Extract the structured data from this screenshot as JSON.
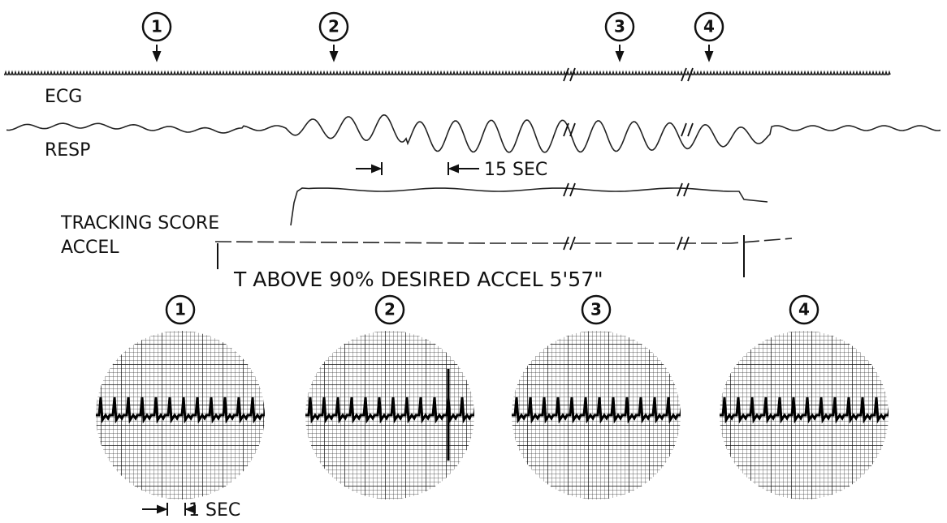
{
  "top_markers": [
    "1",
    "2",
    "3",
    "4"
  ],
  "traces": {
    "ecg": "ECG",
    "resp": "RESP",
    "tracking": "TRACKING SCORE",
    "accel": "ACCEL"
  },
  "resp_scale": "15 SEC",
  "caption": "T ABOVE 90% DESIRED ACCEL 5'57\"",
  "scopes": [
    "1",
    "2",
    "3",
    "4"
  ],
  "scope_scale": "1 SEC"
}
